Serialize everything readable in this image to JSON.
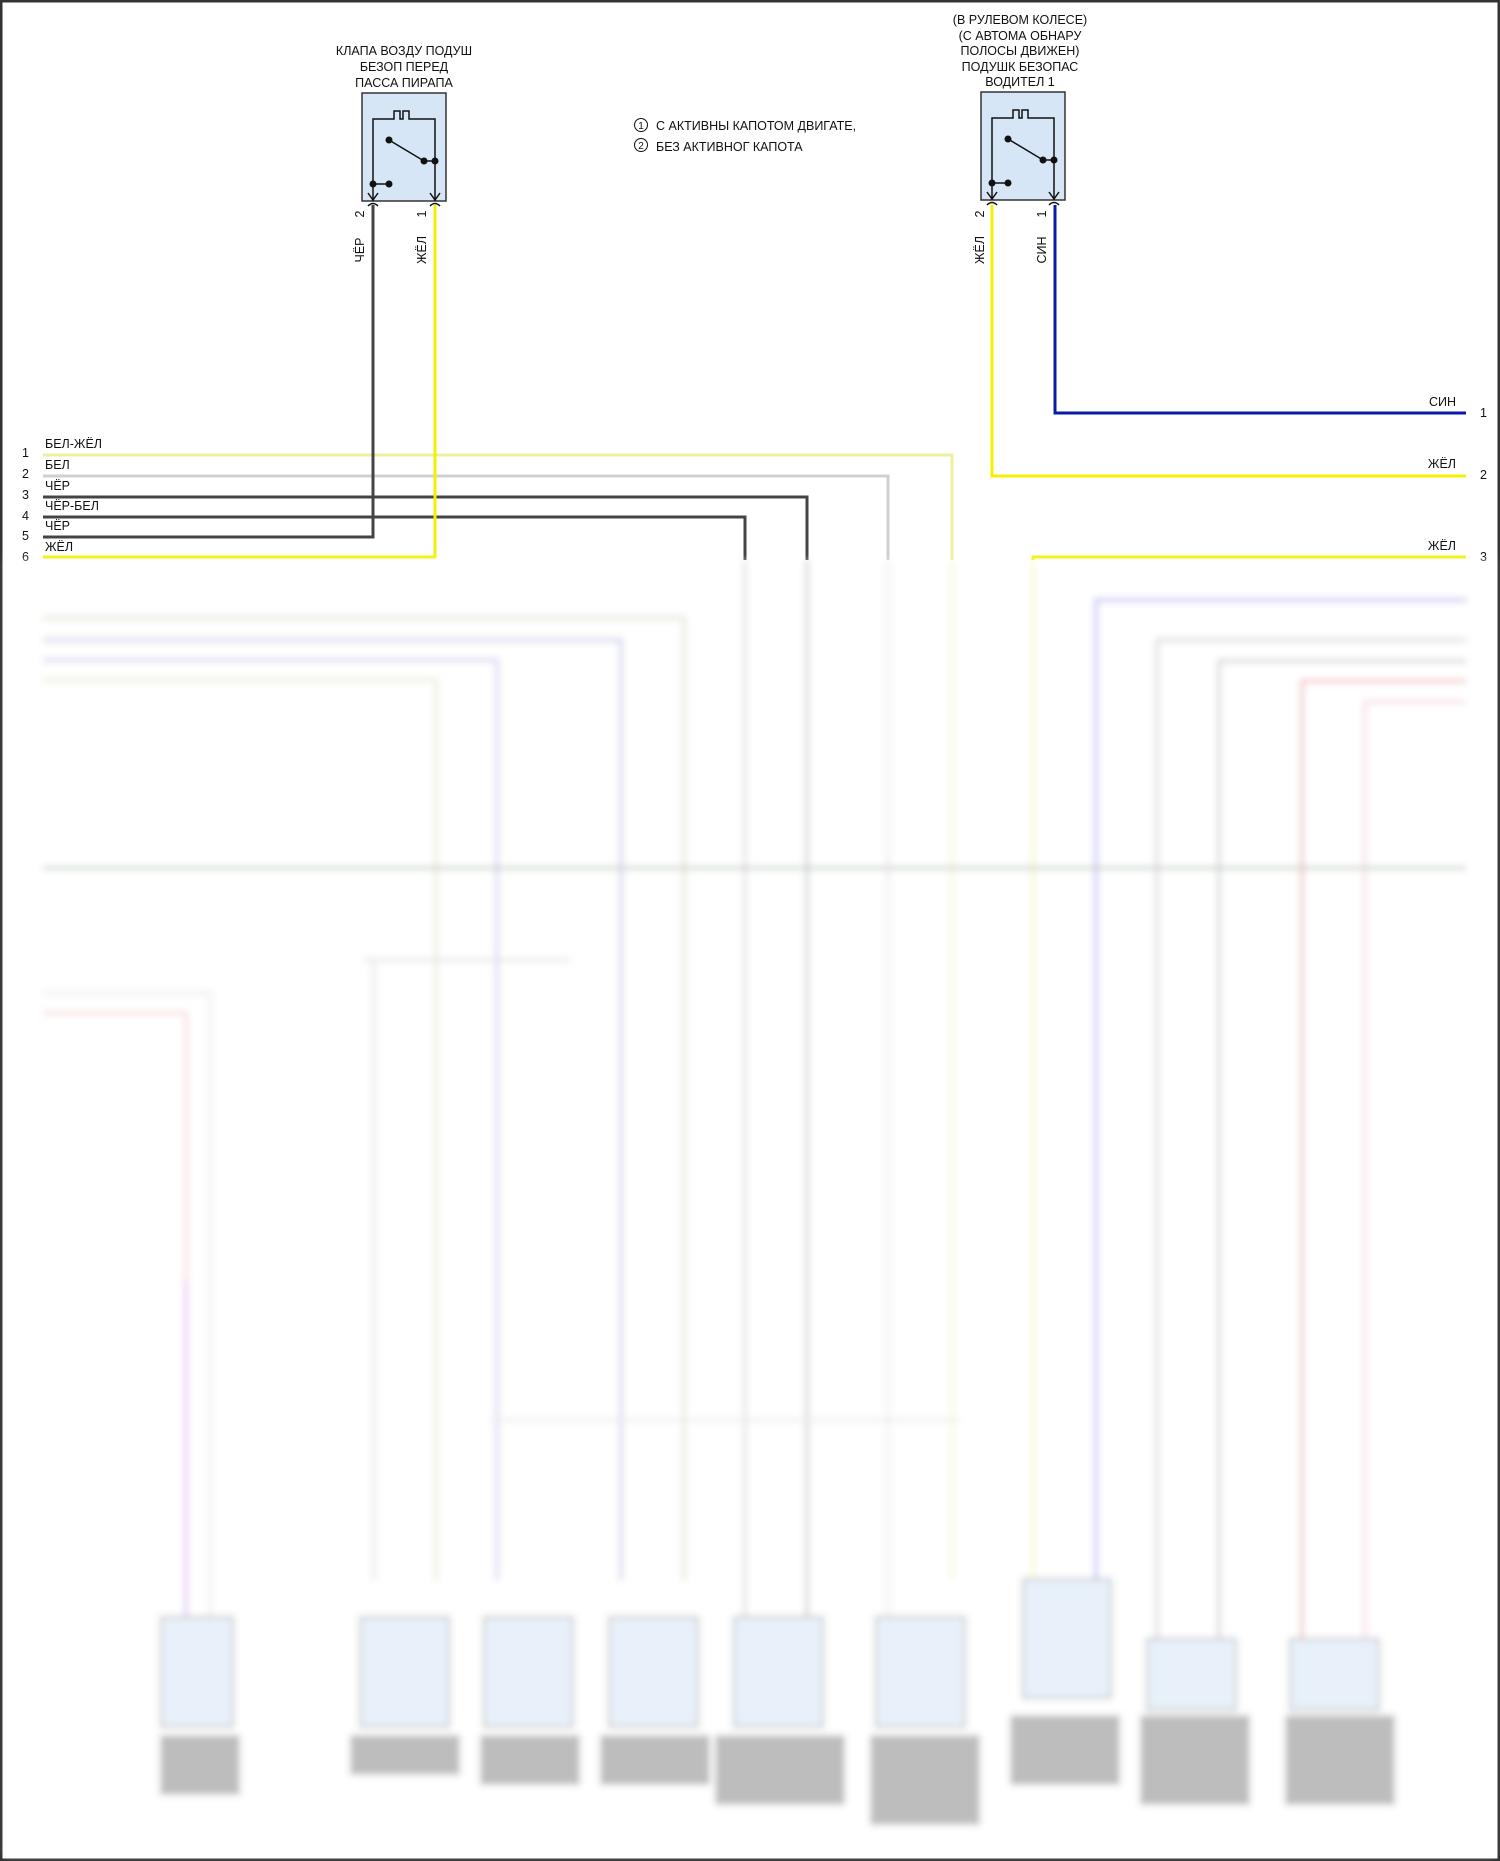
{
  "connectors": {
    "passenger": {
      "title": [
        "КЛАПА ВОЗДУ ПОДУШ",
        "БЕЗОП ПЕРЕД",
        "ПАССА ПИРАПА"
      ],
      "pins": [
        {
          "num": "2",
          "color_label": "ЧЁР"
        },
        {
          "num": "1",
          "color_label": "ЖЁЛ"
        }
      ]
    },
    "driver": {
      "title": [
        "(В РУЛЕВОМ КОЛЕСЕ)",
        "(С АВТОМА ОБНАРУ",
        "ПОЛОСЫ ДВИЖЕН)",
        "ПОДУШК БЕЗОПАС",
        "ВОДИТЕЛ 1"
      ],
      "pins": [
        {
          "num": "2",
          "color_label": "ЖЁЛ"
        },
        {
          "num": "1",
          "color_label": "СИН"
        }
      ]
    }
  },
  "legend": [
    {
      "marker": "1",
      "text": "С АКТИВНЫ КАПОТОМ ДВИГАТЕ,"
    },
    {
      "marker": "2",
      "text": "БЕЗ АКТИВНОГ КАПОТА"
    }
  ],
  "left_harness": [
    {
      "num": "1",
      "label": "БЕЛ-ЖЁЛ"
    },
    {
      "num": "2",
      "label": "БЕЛ"
    },
    {
      "num": "3",
      "label": "ЧЁР"
    },
    {
      "num": "4",
      "label": "ЧЁР-БЕЛ"
    },
    {
      "num": "5",
      "label": "ЧЁР"
    },
    {
      "num": "6",
      "label": "ЖЁЛ"
    }
  ],
  "right_harness": [
    {
      "num": "1",
      "label": "СИН"
    },
    {
      "num": "2",
      "label": "ЖЁЛ"
    },
    {
      "num": "3",
      "label": "ЖЁЛ"
    }
  ],
  "colors": {
    "yellow": "#f5f000",
    "blue": "#0a1aa8",
    "black": "#444444",
    "white_wire": "#d0d0d0",
    "white_yellow": "#eef0a0",
    "connector_fill": "#d6e6f7"
  }
}
